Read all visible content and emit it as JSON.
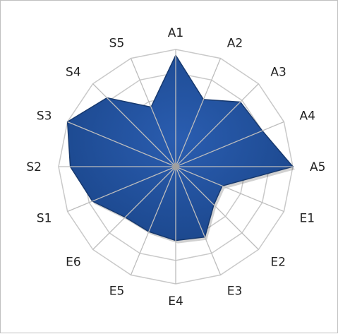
{
  "chart_data": {
    "type": "radar",
    "categories": [
      "A1",
      "A2",
      "A3",
      "A4",
      "A5",
      "E1",
      "E2",
      "E3",
      "E4",
      "E5",
      "E6",
      "S1",
      "S2",
      "S3",
      "S4",
      "S5"
    ],
    "values": [
      9.5,
      6.2,
      7.8,
      8.0,
      10,
      4.3,
      4.6,
      6.5,
      6.3,
      6.0,
      6.1,
      7.7,
      9.0,
      10,
      8.3,
      5.5
    ],
    "rmax": 10,
    "rings": 5,
    "grid": true,
    "legend": "none",
    "colors": {
      "fill": "#1f4f99",
      "fill_light": "#3c74c6",
      "stroke": "#17396e",
      "grid": "#c9c9c9",
      "spoke": "#bdbdbd",
      "center": "#a0a0a0"
    }
  }
}
